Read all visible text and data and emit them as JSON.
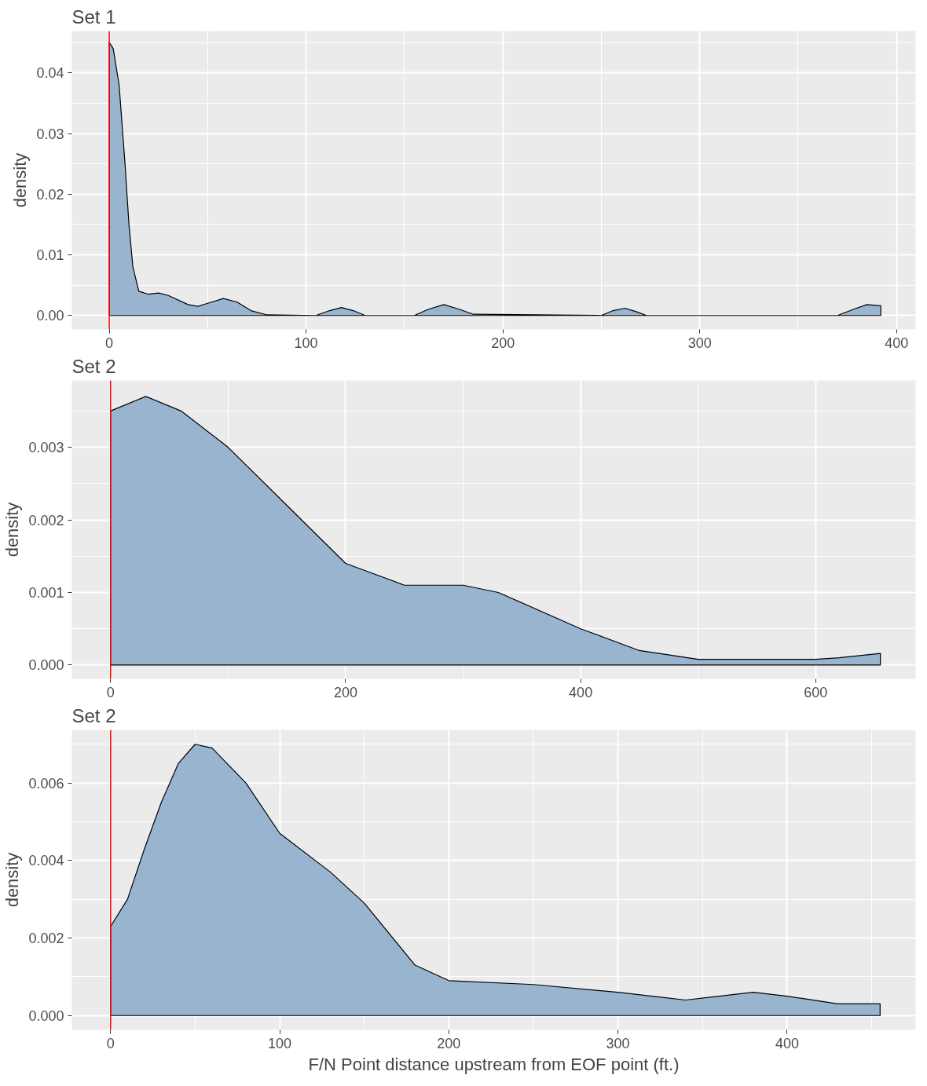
{
  "chart_data": [
    {
      "type": "area",
      "title": "Set 1",
      "ylabel": "density",
      "x": [
        0,
        2,
        5,
        8,
        10,
        12,
        15,
        20,
        25,
        30,
        40,
        45,
        50,
        58,
        65,
        72,
        80,
        105,
        112,
        118,
        124,
        130,
        155,
        162,
        170,
        178,
        185,
        250,
        256,
        262,
        268,
        273,
        370,
        378,
        385,
        392
      ],
      "series": [
        {
          "color": "#98b4cf",
          "values": [
            0.045,
            0.044,
            0.038,
            0.025,
            0.015,
            0.008,
            0.004,
            0.0035,
            0.0037,
            0.0033,
            0.0018,
            0.0015,
            0.002,
            0.0028,
            0.0022,
            0.0008,
            0.0001,
            0,
            0.0008,
            0.0013,
            0.0008,
            0,
            0,
            0.001,
            0.0018,
            0.001,
            0.0002,
            0,
            0.0008,
            0.0012,
            0.0006,
            0,
            0,
            0.001,
            0.0018,
            0.0016
          ]
        }
      ],
      "xlim": [
        -19,
        409.7
      ],
      "ylim": [
        -0.0023,
        0.0469
      ],
      "xticks": [
        0,
        100,
        200,
        300,
        400
      ],
      "yticks": [
        {
          "value": 0,
          "label": "0.00"
        },
        {
          "value": 0.01,
          "label": "0.01"
        },
        {
          "value": 0.02,
          "label": "0.02"
        },
        {
          "value": 0.03,
          "label": "0.03"
        },
        {
          "value": 0.04,
          "label": "0.04"
        }
      ],
      "grid": true,
      "ref_lines": [
        {
          "axis": "x",
          "value": 0,
          "color": "#ff0000"
        }
      ]
    },
    {
      "type": "area",
      "title": "Set 2",
      "ylabel": "density",
      "x": [
        0,
        30,
        60,
        100,
        150,
        200,
        250,
        300,
        330,
        400,
        450,
        500,
        530,
        600,
        620,
        655
      ],
      "series": [
        {
          "color": "#98b4cf",
          "values": [
            0.0035,
            0.0037,
            0.0035,
            0.003,
            0.0022,
            0.0014,
            0.0011,
            0.0011,
            0.001,
            0.0005,
            0.0002,
            8e-05,
            8e-05,
            8e-05,
            0.0001,
            0.00016
          ]
        }
      ],
      "xlim": [
        -32.9,
        685
      ],
      "ylim": [
        -0.00019,
        0.00392
      ],
      "xticks": [
        0,
        200,
        400,
        600
      ],
      "yticks": [
        {
          "value": 0,
          "label": "0.000"
        },
        {
          "value": 0.001,
          "label": "0.001"
        },
        {
          "value": 0.002,
          "label": "0.002"
        },
        {
          "value": 0.003,
          "label": "0.003"
        }
      ],
      "grid": true,
      "ref_lines": [
        {
          "axis": "x",
          "value": 0,
          "color": "#ff0000"
        }
      ]
    },
    {
      "type": "area",
      "title": "Set 2",
      "ylabel": "density",
      "xlabel": "F/N Point distance upstream from EOF point (ft.)",
      "x": [
        0,
        10,
        20,
        30,
        40,
        50,
        60,
        80,
        100,
        130,
        150,
        180,
        200,
        250,
        300,
        340,
        380,
        400,
        430,
        455
      ],
      "series": [
        {
          "color": "#98b4cf",
          "values": [
            0.0023,
            0.003,
            0.0043,
            0.0055,
            0.0065,
            0.007,
            0.0069,
            0.006,
            0.0047,
            0.0037,
            0.0029,
            0.0013,
            0.0009,
            0.0008,
            0.0006,
            0.0004,
            0.0006,
            0.0005,
            0.0003,
            0.0003
          ]
        }
      ],
      "xlim": [
        -22.9,
        476
      ],
      "ylim": [
        -0.00037,
        0.00737
      ],
      "xticks": [
        0,
        100,
        200,
        300,
        400
      ],
      "yticks": [
        {
          "value": 0,
          "label": "0.000"
        },
        {
          "value": 0.002,
          "label": "0.002"
        },
        {
          "value": 0.004,
          "label": "0.004"
        },
        {
          "value": 0.006,
          "label": "0.006"
        }
      ],
      "grid": true,
      "ref_lines": [
        {
          "axis": "x",
          "value": 0,
          "color": "#ff0000"
        }
      ]
    }
  ]
}
